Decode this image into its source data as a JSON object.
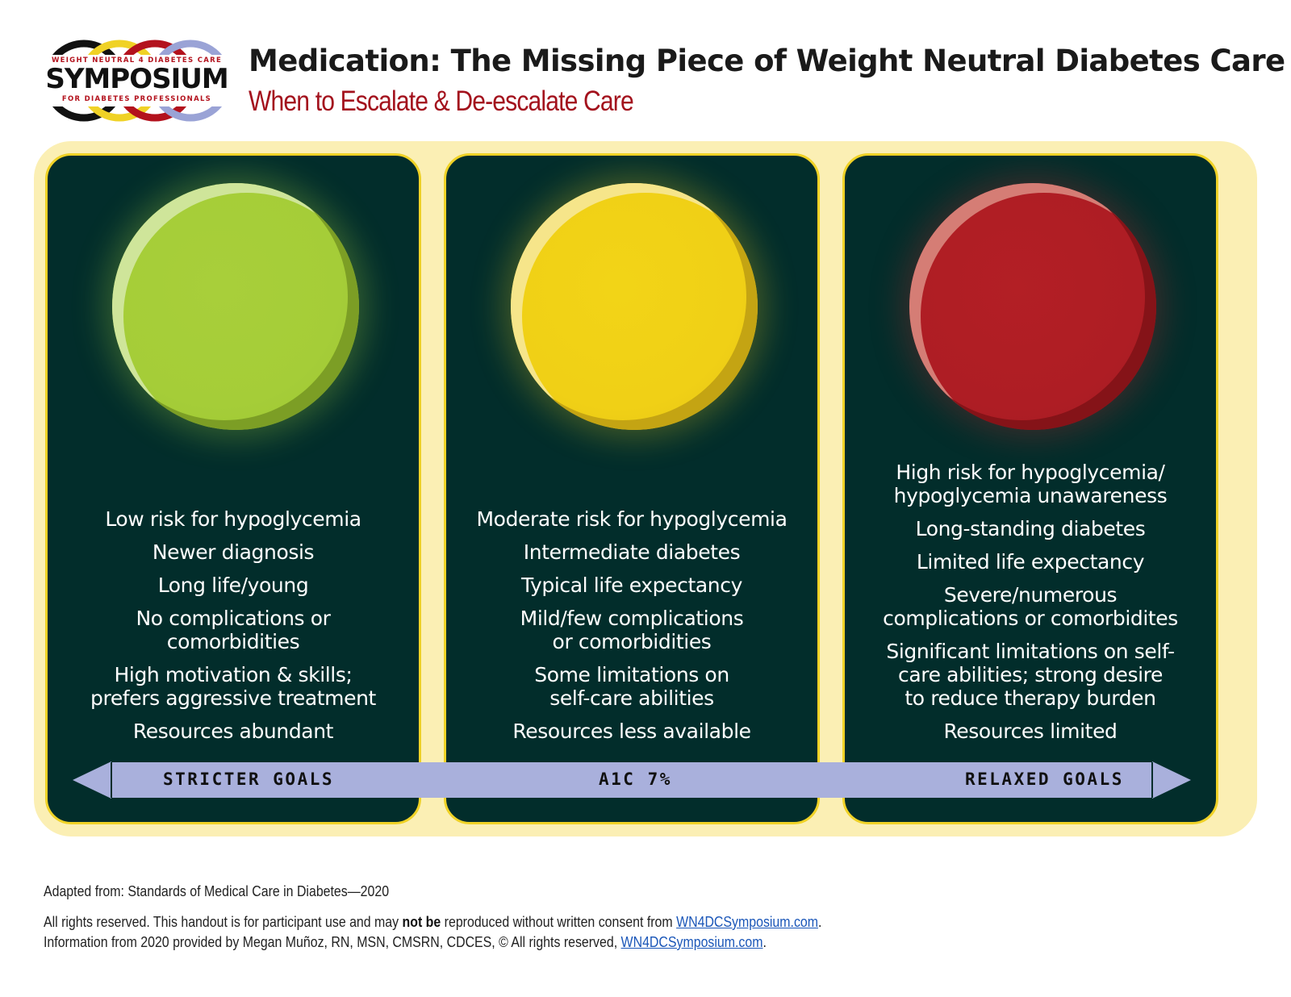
{
  "logo": {
    "top_text": "WEIGHT NEUTRAL 4 DIABETES CARE",
    "main_text": "SYMPOSIUM",
    "bottom_text": "FOR DIABETES PROFESSIONALS",
    "ring_colors": [
      "#111111",
      "#f0d226",
      "#b3121d",
      "#9aa3d6"
    ]
  },
  "header": {
    "title": "Medication: The Missing Piece of Weight Neutral Diabetes Care",
    "subtitle": "When to Escalate & De-escalate Care"
  },
  "panels": [
    {
      "indicator_color": "#a5cd38",
      "items": [
        "Low risk for hypoglycemia",
        "Newer diagnosis",
        "Long life/young",
        "No complications or\ncomorbidities",
        "High motivation & skills;\nprefers aggressive treatment",
        "Resources abundant"
      ]
    },
    {
      "indicator_color": "#f0d016",
      "items": [
        "Moderate risk for hypoglycemia",
        "Intermediate diabetes",
        "Typical life expectancy",
        "Mild/few complications\nor comorbidities",
        "Some limitations on\nself-care abilities",
        "Resources less available"
      ]
    },
    {
      "indicator_color": "#ae1d24",
      "items": [
        "High risk for hypoglycemia/\nhypoglycemia unawareness",
        "Long-standing diabetes",
        "Limited life expectancy",
        "Severe/numerous\ncomplications or comorbidites",
        "Significant limitations on self-\ncare abilities; strong desire\nto reduce therapy burden",
        "Resources limited"
      ]
    }
  ],
  "scale": {
    "left_label": "STRICTER GOALS",
    "center_label": "A1C 7%",
    "right_label": "RELAXED GOALS",
    "bar_color": "#a9b0dc"
  },
  "footer": {
    "source": "Adapted from: Standards of Medical Care in Diabetes—2020",
    "rights_before": "All rights reserved. This handout is for participant use and may ",
    "rights_bold": "not be",
    "rights_after": " reproduced without written consent from ",
    "rights_link": "WN4DCSymposium.com",
    "rights_end": ".",
    "info_text": "Information from 2020 provided by Megan Muñoz, RN, MSN, CMSRN, CDCES, © All rights reserved, ",
    "info_link": "WN4DCSymposium.com",
    "info_end": "."
  }
}
